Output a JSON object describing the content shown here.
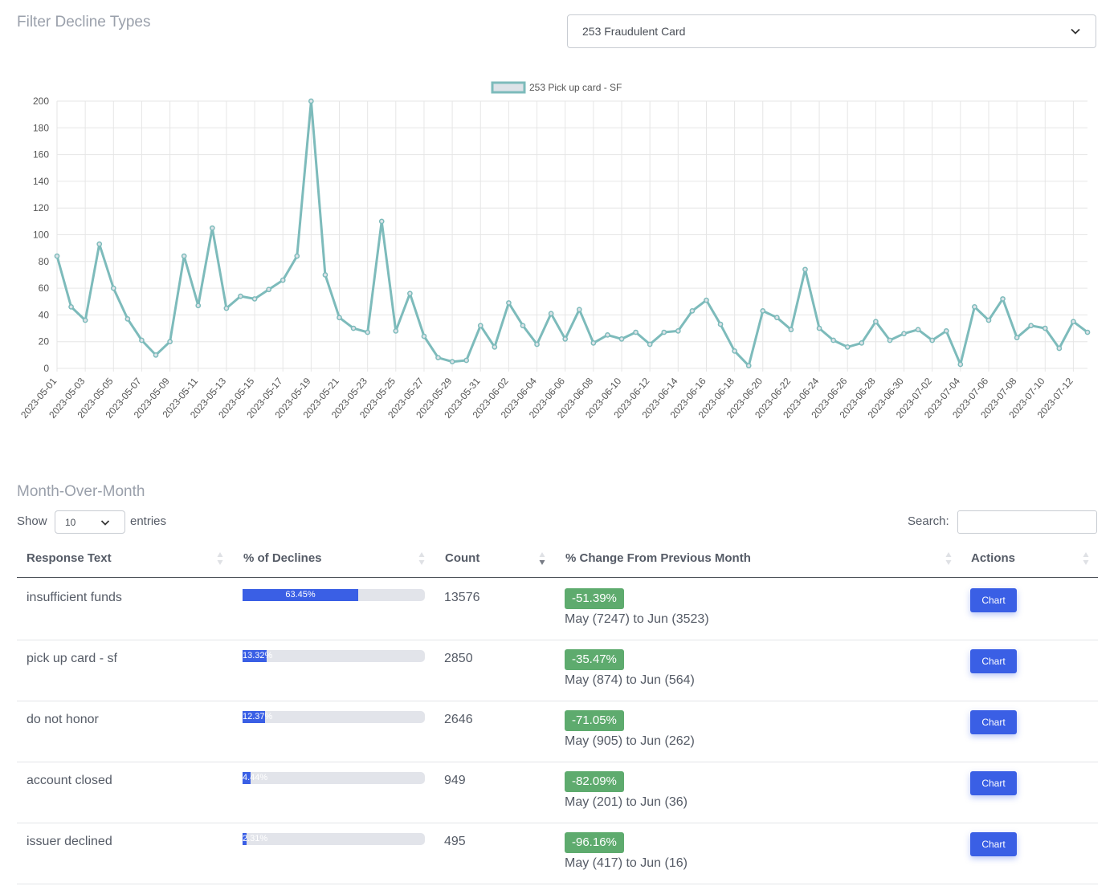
{
  "filter": {
    "title": "Filter Decline Types",
    "selected": "253 Fraudulent Card"
  },
  "chart_data": {
    "type": "line",
    "legend": "253 Pick up card - SF",
    "legend_position": "top-center",
    "color": "#7dbbbb",
    "grid": true,
    "ylim": [
      0,
      200
    ],
    "yticks": [
      0,
      20,
      40,
      60,
      80,
      100,
      120,
      140,
      160,
      180,
      200
    ],
    "x": [
      "2023-05-01",
      "2023-05-02",
      "2023-05-03",
      "2023-05-04",
      "2023-05-05",
      "2023-05-06",
      "2023-05-07",
      "2023-05-08",
      "2023-05-09",
      "2023-05-10",
      "2023-05-11",
      "2023-05-12",
      "2023-05-13",
      "2023-05-14",
      "2023-05-15",
      "2023-05-16",
      "2023-05-17",
      "2023-05-18",
      "2023-05-19",
      "2023-05-20",
      "2023-05-21",
      "2023-05-22",
      "2023-05-23",
      "2023-05-24",
      "2023-05-25",
      "2023-05-26",
      "2023-05-27",
      "2023-05-28",
      "2023-05-29",
      "2023-05-30",
      "2023-05-31",
      "2023-06-01",
      "2023-06-02",
      "2023-06-03",
      "2023-06-04",
      "2023-06-05",
      "2023-06-06",
      "2023-06-07",
      "2023-06-08",
      "2023-06-09",
      "2023-06-10",
      "2023-06-11",
      "2023-06-12",
      "2023-06-13",
      "2023-06-14",
      "2023-06-15",
      "2023-06-16",
      "2023-06-17",
      "2023-06-18",
      "2023-06-19",
      "2023-06-20",
      "2023-06-21",
      "2023-06-22",
      "2023-06-23",
      "2023-06-24",
      "2023-06-25",
      "2023-06-26",
      "2023-06-27",
      "2023-06-28",
      "2023-06-29",
      "2023-06-30",
      "2023-07-01",
      "2023-07-02",
      "2023-07-03",
      "2023-07-04",
      "2023-07-05",
      "2023-07-06",
      "2023-07-07",
      "2023-07-08",
      "2023-07-09",
      "2023-07-10",
      "2023-07-11",
      "2023-07-12",
      "2023-07-13"
    ],
    "values": [
      84,
      46,
      36,
      93,
      60,
      37,
      21,
      10,
      20,
      84,
      47,
      105,
      45,
      54,
      52,
      59,
      66,
      84,
      200,
      70,
      38,
      30,
      27,
      110,
      28,
      56,
      24,
      8,
      5,
      6,
      32,
      16,
      49,
      32,
      18,
      41,
      22,
      44,
      19,
      25,
      22,
      27,
      18,
      27,
      28,
      43,
      51,
      33,
      13,
      2,
      43,
      38,
      29,
      74,
      30,
      21,
      16,
      19,
      35,
      21,
      26,
      29,
      21,
      28,
      3,
      46,
      36,
      52,
      23,
      32,
      30,
      15,
      35,
      27
    ],
    "xtick_labels": [
      "2023-05-01",
      "2023-05-03",
      "2023-05-05",
      "2023-05-07",
      "2023-05-09",
      "2023-05-11",
      "2023-05-13",
      "2023-05-15",
      "2023-05-17",
      "2023-05-19",
      "2023-05-21",
      "2023-05-23",
      "2023-05-25",
      "2023-05-27",
      "2023-05-29",
      "2023-05-31",
      "2023-06-02",
      "2023-06-04",
      "2023-06-06",
      "2023-06-08",
      "2023-06-10",
      "2023-06-12",
      "2023-06-14",
      "2023-06-16",
      "2023-06-18",
      "2023-06-20",
      "2023-06-22",
      "2023-06-24",
      "2023-06-26",
      "2023-06-28",
      "2023-06-30",
      "2023-07-02",
      "2023-07-04",
      "2023-07-06",
      "2023-07-08",
      "2023-07-10",
      "2023-07-12"
    ]
  },
  "mom": {
    "title": "Month-Over-Month",
    "show_label": "Show",
    "entries_value": "10",
    "entries_label": "entries",
    "search_label": "Search:",
    "search_value": "",
    "columns": [
      "Response Text",
      "% of Declines",
      "Count",
      "% Change From Previous Month",
      "Actions"
    ],
    "rows": [
      {
        "text": "insufficient funds",
        "pct": 63.45,
        "pct_label": "63.45%",
        "count": "13576",
        "change": "-51.39%",
        "desc": "May (7247) to Jun (3523)",
        "action": "Chart"
      },
      {
        "text": "pick up card - sf",
        "pct": 13.32,
        "pct_label": "13.32%",
        "count": "2850",
        "change": "-35.47%",
        "desc": "May (874) to Jun (564)",
        "action": "Chart"
      },
      {
        "text": "do not honor",
        "pct": 12.37,
        "pct_label": "12.37%",
        "count": "2646",
        "change": "-71.05%",
        "desc": "May (905) to Jun (262)",
        "action": "Chart"
      },
      {
        "text": "account closed",
        "pct": 4.44,
        "pct_label": "4.44%",
        "count": "949",
        "change": "-82.09%",
        "desc": "May (201) to Jun (36)",
        "action": "Chart"
      },
      {
        "text": "issuer declined",
        "pct": 2.31,
        "pct_label": "2.31%",
        "count": "495",
        "change": "-96.16%",
        "desc": "May (417) to Jun (16)",
        "action": "Chart"
      }
    ]
  }
}
